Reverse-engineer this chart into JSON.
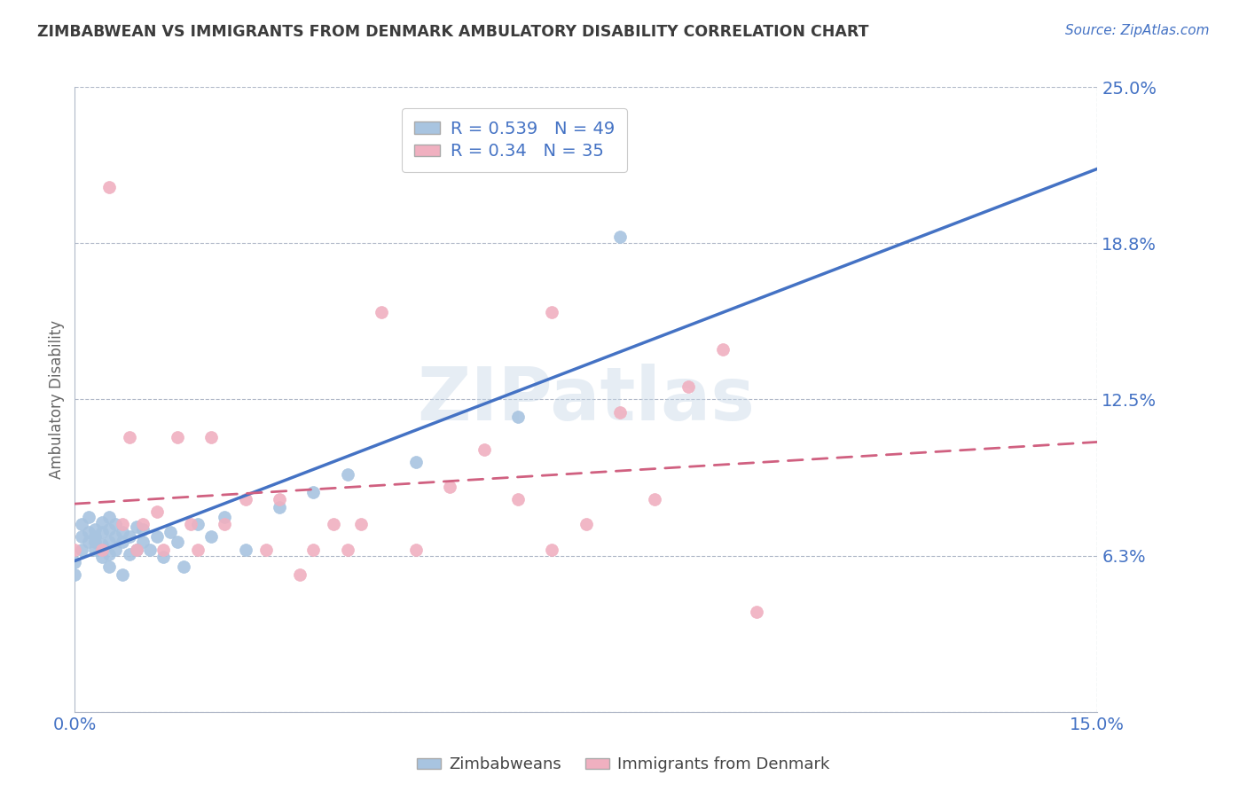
{
  "title": "ZIMBABWEAN VS IMMIGRANTS FROM DENMARK AMBULATORY DISABILITY CORRELATION CHART",
  "source_text": "Source: ZipAtlas.com",
  "ylabel": "Ambulatory Disability",
  "xlim": [
    0.0,
    0.15
  ],
  "ylim": [
    0.0,
    0.25
  ],
  "yticks": [
    0.0,
    0.0625,
    0.125,
    0.1875,
    0.25
  ],
  "ytick_labels": [
    "",
    "6.3%",
    "12.5%",
    "18.8%",
    "25.0%"
  ],
  "title_color": "#3c3c3c",
  "axis_color": "#4472c4",
  "grid_color": "#b0b8c8",
  "blue_color": "#a8c4e0",
  "pink_color": "#f0b0c0",
  "line_blue": "#4472c4",
  "line_pink": "#d06080",
  "R_blue": 0.539,
  "N_blue": 49,
  "R_pink": 0.34,
  "N_pink": 35,
  "watermark": "ZIPatlas",
  "blue_scatter_x": [
    0.0,
    0.0,
    0.001,
    0.001,
    0.001,
    0.002,
    0.002,
    0.002,
    0.003,
    0.003,
    0.003,
    0.003,
    0.004,
    0.004,
    0.004,
    0.004,
    0.005,
    0.005,
    0.005,
    0.005,
    0.005,
    0.006,
    0.006,
    0.006,
    0.007,
    0.007,
    0.007,
    0.008,
    0.008,
    0.009,
    0.009,
    0.01,
    0.01,
    0.011,
    0.012,
    0.013,
    0.014,
    0.015,
    0.016,
    0.018,
    0.02,
    0.022,
    0.025,
    0.03,
    0.035,
    0.04,
    0.05,
    0.065,
    0.08
  ],
  "blue_scatter_y": [
    0.06,
    0.055,
    0.065,
    0.07,
    0.075,
    0.068,
    0.072,
    0.078,
    0.065,
    0.07,
    0.073,
    0.068,
    0.062,
    0.067,
    0.072,
    0.076,
    0.063,
    0.068,
    0.073,
    0.078,
    0.058,
    0.065,
    0.07,
    0.075,
    0.068,
    0.072,
    0.055,
    0.063,
    0.07,
    0.065,
    0.074,
    0.068,
    0.073,
    0.065,
    0.07,
    0.062,
    0.072,
    0.068,
    0.058,
    0.075,
    0.07,
    0.078,
    0.065,
    0.082,
    0.088,
    0.095,
    0.1,
    0.118,
    0.19
  ],
  "pink_scatter_x": [
    0.0,
    0.004,
    0.005,
    0.007,
    0.008,
    0.009,
    0.01,
    0.012,
    0.013,
    0.015,
    0.017,
    0.018,
    0.02,
    0.022,
    0.025,
    0.028,
    0.03,
    0.033,
    0.035,
    0.038,
    0.04,
    0.042,
    0.045,
    0.05,
    0.055,
    0.06,
    0.065,
    0.07,
    0.075,
    0.08,
    0.085,
    0.09,
    0.095,
    0.1,
    0.07
  ],
  "pink_scatter_y": [
    0.065,
    0.065,
    0.21,
    0.075,
    0.11,
    0.065,
    0.075,
    0.08,
    0.065,
    0.11,
    0.075,
    0.065,
    0.11,
    0.075,
    0.085,
    0.065,
    0.085,
    0.055,
    0.065,
    0.075,
    0.065,
    0.075,
    0.16,
    0.065,
    0.09,
    0.105,
    0.085,
    0.065,
    0.075,
    0.12,
    0.085,
    0.13,
    0.145,
    0.04,
    0.16
  ]
}
